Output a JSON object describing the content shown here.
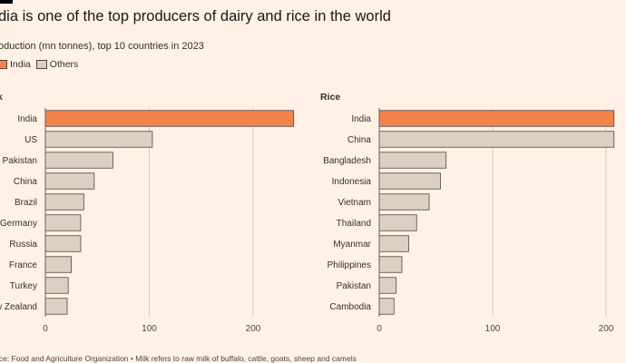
{
  "header": {
    "title": "dia is one of the top producers of dairy and rice in the world",
    "subtitle": "oduction (mn tonnes), top 10 countries in 2023"
  },
  "legend": [
    {
      "label": "India",
      "color": "#f5824a"
    },
    {
      "label": "Others",
      "color": "#ddd0c2"
    }
  ],
  "colors": {
    "highlight": "#f5824a",
    "others": "#ddd0c2",
    "bar_stroke": "#4d4845",
    "grid": "#d8cbbf",
    "axis": "#66605c"
  },
  "chart_data": [
    {
      "type": "bar",
      "orientation": "horizontal",
      "title": "k",
      "categories": [
        "India",
        "US",
        "Pakistan",
        "China",
        "Brazil",
        "Germany",
        "Russia",
        "France",
        "Turkey",
        "w Zealand"
      ],
      "values": [
        239,
        103,
        65,
        47,
        37,
        34,
        34,
        25,
        22,
        21
      ],
      "highlight": "India",
      "xlim": [
        0,
        240
      ],
      "xticks": [
        0,
        100,
        200
      ],
      "grid": true
    },
    {
      "type": "bar",
      "orientation": "horizontal",
      "title": "Rice",
      "categories": [
        "India",
        "China",
        "Bangladesh",
        "Indonesia",
        "Vietnam",
        "Thailand",
        "Myanmar",
        "Philippines",
        "Pakistan",
        "Cambodia"
      ],
      "values": [
        207,
        207,
        59,
        54,
        44,
        33,
        26,
        20,
        15,
        13
      ],
      "highlight": "India",
      "xlim": [
        0,
        210
      ],
      "xticks": [
        0,
        100,
        200
      ],
      "grid": true
    }
  ],
  "footer": {
    "source": "rce: Food and Agriculture Organization • Milk refers to raw milk of buffalo, cattle, goats, sheep and camels"
  }
}
